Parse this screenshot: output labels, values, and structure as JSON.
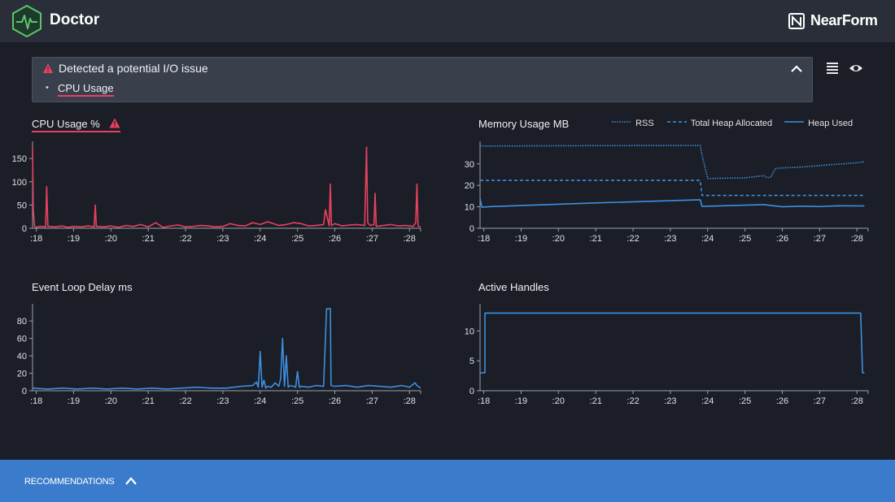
{
  "header": {
    "app_title": "Doctor",
    "logo_icon": "doctor-heartbeat-hexagon-icon",
    "brand_name": "NearForm",
    "brand_icon": "nearform-logo-icon"
  },
  "alert": {
    "title": "Detected a potential I/O issue",
    "items": [
      "CPU Usage"
    ],
    "warning_icon": "warning-triangle-icon",
    "collapse_icon": "chevron-up-icon",
    "colors": {
      "warning": "#e8415e"
    }
  },
  "side_buttons": {
    "list_icon": "list-view-icon",
    "eye_icon": "eye-icon"
  },
  "charts": {
    "cpu": {
      "title": "CPU Usage %",
      "warning_icon": "warning-triangle-icon"
    },
    "memory": {
      "title": "Memory Usage MB",
      "legend": [
        "RSS",
        "Total Heap Allocated",
        "Heap Used"
      ]
    },
    "delay": {
      "title": "Event Loop Delay ms"
    },
    "handles": {
      "title": "Active Handles"
    }
  },
  "chart_data": [
    {
      "type": "line",
      "id": "cpu",
      "title": "CPU Usage %",
      "color": "#e8415e",
      "x_ticks": [
        ":18",
        ":19",
        ":20",
        ":21",
        ":22",
        ":23",
        ":24",
        ":25",
        ":26",
        ":27",
        ":28"
      ],
      "x_range": [
        17.9,
        28.3
      ],
      "y_ticks": [
        0,
        50,
        100,
        150
      ],
      "ylim": [
        0,
        180
      ],
      "x": [
        17.9,
        17.92,
        17.95,
        18.0,
        18.1,
        18.25,
        18.28,
        18.31,
        18.5,
        18.7,
        18.85,
        19.0,
        19.2,
        19.4,
        19.55,
        19.58,
        19.61,
        19.8,
        20.0,
        20.2,
        20.4,
        20.6,
        20.8,
        21.0,
        21.2,
        21.4,
        21.6,
        21.8,
        22.0,
        22.2,
        22.4,
        22.6,
        22.8,
        23.0,
        23.2,
        23.4,
        23.6,
        23.8,
        24.0,
        24.2,
        24.35,
        24.5,
        24.7,
        24.9,
        25.1,
        25.3,
        25.5,
        25.7,
        25.75,
        25.85,
        25.88,
        25.91,
        26.0,
        26.2,
        26.4,
        26.6,
        26.8,
        26.85,
        26.88,
        26.9,
        26.95,
        27.05,
        27.08,
        27.11,
        27.3,
        27.5,
        27.7,
        27.9,
        28.1,
        28.17,
        28.2,
        28.23,
        28.3
      ],
      "y": [
        175,
        40,
        5,
        2,
        4,
        3,
        90,
        4,
        3,
        5,
        2,
        4,
        3,
        5,
        3,
        50,
        4,
        3,
        5,
        2,
        6,
        4,
        8,
        3,
        12,
        2,
        5,
        7,
        3,
        4,
        6,
        5,
        3,
        4,
        10,
        6,
        5,
        12,
        8,
        14,
        10,
        6,
        8,
        12,
        10,
        5,
        6,
        8,
        40,
        5,
        95,
        6,
        10,
        5,
        7,
        8,
        6,
        175,
        12,
        10,
        6,
        8,
        75,
        4,
        6,
        8,
        5,
        6,
        4,
        12,
        95,
        5,
        3
      ]
    },
    {
      "type": "line",
      "id": "memory",
      "title": "Memory Usage MB",
      "color": "#3d8fe0",
      "x_ticks": [
        ":18",
        ":19",
        ":20",
        ":21",
        ":22",
        ":23",
        ":24",
        ":25",
        ":26",
        ":27",
        ":28"
      ],
      "x_range": [
        17.9,
        28.3
      ],
      "y_ticks": [
        0,
        10,
        20,
        30
      ],
      "ylim": [
        0,
        39
      ],
      "series": [
        {
          "name": "RSS",
          "style": "dotted",
          "x": [
            17.9,
            18.0,
            21.0,
            23.8,
            23.85,
            24.0,
            25.0,
            25.5,
            25.6,
            25.7,
            25.8,
            25.85,
            26.5,
            27.2,
            28.0,
            28.2
          ],
          "y": [
            38.5,
            38.3,
            38.5,
            38.6,
            34,
            23.2,
            23.5,
            24.5,
            23.5,
            24,
            27.5,
            28,
            28.5,
            29.5,
            30.5,
            31
          ]
        },
        {
          "name": "Total Heap Allocated",
          "style": "dashed",
          "x": [
            17.9,
            23.8,
            23.85,
            28.2
          ],
          "y": [
            22.3,
            22.3,
            15.3,
            15.3
          ]
        },
        {
          "name": "Heap Used",
          "style": "solid",
          "x": [
            17.9,
            17.95,
            18.2,
            21.0,
            23.8,
            23.85,
            25.5,
            26.0,
            26.5,
            27.0,
            27.5,
            28.2
          ],
          "y": [
            14,
            9.8,
            10.1,
            11.8,
            13.3,
            10.2,
            11,
            10,
            10.3,
            10.1,
            10.5,
            10.4
          ]
        }
      ]
    },
    {
      "type": "line",
      "id": "event-loop-delay",
      "title": "Event Loop Delay ms",
      "color": "#3d8fe0",
      "x_ticks": [
        ":18",
        ":19",
        ":20",
        ":21",
        ":22",
        ":23",
        ":24",
        ":25",
        ":26",
        ":27",
        ":28"
      ],
      "x_range": [
        17.9,
        28.3
      ],
      "y_ticks": [
        0,
        20,
        40,
        60,
        80
      ],
      "ylim": [
        0,
        96
      ],
      "x": [
        17.9,
        18.3,
        18.7,
        19.1,
        19.5,
        19.9,
        20.3,
        20.7,
        21.1,
        21.5,
        21.9,
        22.3,
        22.7,
        23.1,
        23.5,
        23.8,
        23.9,
        23.95,
        24.0,
        24.05,
        24.1,
        24.15,
        24.2,
        24.3,
        24.4,
        24.5,
        24.55,
        24.6,
        24.65,
        24.7,
        24.75,
        24.8,
        24.9,
        24.95,
        25.0,
        25.05,
        25.1,
        25.3,
        25.5,
        25.7,
        25.78,
        25.8,
        25.88,
        25.9,
        26.0,
        26.3,
        26.6,
        26.9,
        27.2,
        27.5,
        27.8,
        28.0,
        28.15,
        28.2,
        28.3
      ],
      "y": [
        3,
        2,
        3,
        2,
        3,
        2,
        3,
        2,
        3,
        2,
        3,
        4,
        3,
        3,
        5,
        6,
        10,
        4,
        45,
        4,
        12,
        3,
        5,
        4,
        9,
        5,
        14,
        60,
        5,
        40,
        4,
        6,
        5,
        4,
        22,
        4,
        5,
        4,
        6,
        5,
        94,
        94,
        94,
        6,
        5,
        6,
        4,
        6,
        5,
        4,
        6,
        4,
        9,
        6,
        3
      ]
    },
    {
      "type": "line",
      "id": "active-handles",
      "title": "Active Handles",
      "color": "#3d8fe0",
      "x_ticks": [
        ":18",
        ":19",
        ":20",
        ":21",
        ":22",
        ":23",
        ":24",
        ":25",
        ":26",
        ":27",
        ":28"
      ],
      "x_range": [
        17.9,
        28.3
      ],
      "y_ticks": [
        0,
        5,
        10
      ],
      "ylim": [
        0,
        14
      ],
      "x": [
        17.9,
        18.03,
        18.03,
        28.1,
        28.15,
        28.2
      ],
      "y": [
        3,
        3,
        13,
        13,
        3,
        3
      ]
    }
  ],
  "footer": {
    "label": "RECOMMENDATIONS",
    "chevron_icon": "chevron-up-icon"
  }
}
